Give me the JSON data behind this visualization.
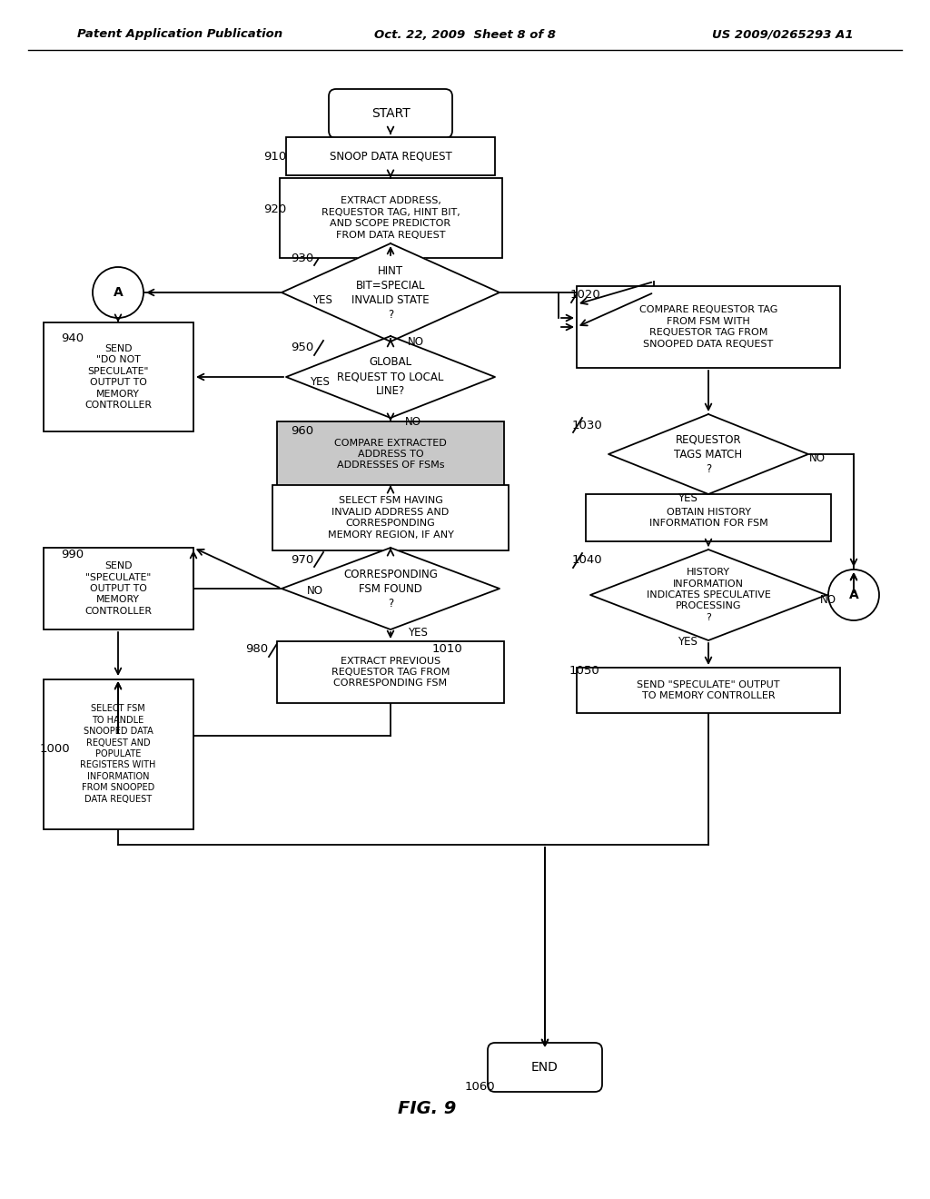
{
  "title_left": "Patent Application Publication",
  "title_mid": "Oct. 22, 2009  Sheet 8 of 8",
  "title_right": "US 2009/0265293 A1",
  "background": "#ffffff"
}
